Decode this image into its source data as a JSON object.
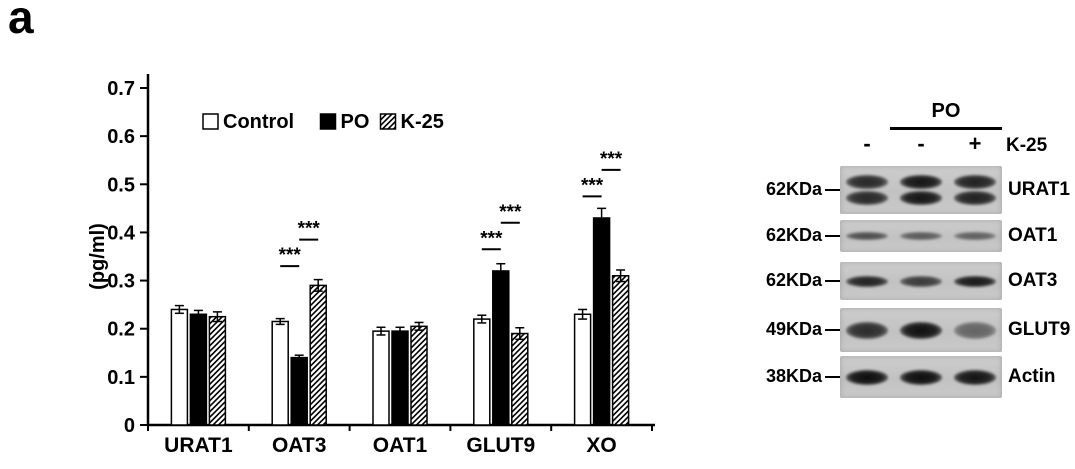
{
  "panel_label": "a",
  "chart_data": {
    "type": "bar",
    "title": "",
    "xlabel": "",
    "ylabel": "(pg/ml)",
    "ylim": [
      0,
      0.7
    ],
    "yticks": [
      0,
      0.1,
      0.2,
      0.3,
      0.4,
      0.5,
      0.6,
      0.7
    ],
    "grid": false,
    "legend_position": "top-left-inside",
    "categories": [
      "URAT1",
      "OAT3",
      "OAT1",
      "GLUT9",
      "XO"
    ],
    "series": [
      {
        "name": "Control",
        "style": "white",
        "values": [
          0.24,
          0.215,
          0.195,
          0.22,
          0.23
        ],
        "errors": [
          0.008,
          0.006,
          0.008,
          0.008,
          0.01
        ]
      },
      {
        "name": "PO",
        "style": "black",
        "values": [
          0.23,
          0.14,
          0.195,
          0.32,
          0.43
        ],
        "errors": [
          0.008,
          0.005,
          0.008,
          0.015,
          0.02
        ]
      },
      {
        "name": "K-25",
        "style": "hatch",
        "values": [
          0.225,
          0.29,
          0.205,
          0.19,
          0.31
        ],
        "errors": [
          0.01,
          0.012,
          0.008,
          0.012,
          0.012
        ]
      }
    ],
    "significance": [
      {
        "category": "OAT3",
        "pair": [
          0,
          1
        ],
        "label": "***",
        "y": 0.33
      },
      {
        "category": "OAT3",
        "pair": [
          1,
          2
        ],
        "label": "***",
        "y": 0.385
      },
      {
        "category": "GLUT9",
        "pair": [
          0,
          1
        ],
        "label": "***",
        "y": 0.365
      },
      {
        "category": "GLUT9",
        "pair": [
          1,
          2
        ],
        "label": "***",
        "y": 0.42
      },
      {
        "category": "XO",
        "pair": [
          0,
          1
        ],
        "label": "***",
        "y": 0.475
      },
      {
        "category": "XO",
        "pair": [
          1,
          2
        ],
        "label": "***",
        "y": 0.53
      }
    ],
    "colors": {
      "bar_fill_control": "#ffffff",
      "bar_fill_po": "#000000",
      "bar_stroke": "#000000"
    }
  },
  "blot": {
    "treatment_label": "PO",
    "condition_label": "K-25",
    "lane_signs": [
      "-",
      "-",
      "+"
    ],
    "rows": [
      {
        "kda": "62KDa",
        "protein": "URAT1",
        "double_band": true,
        "band_height": 16,
        "band_intensities": [
          0.82,
          0.92,
          0.86
        ]
      },
      {
        "kda": "62KDa",
        "protein": "OAT1",
        "double_band": false,
        "band_height": 8,
        "band_intensities": [
          0.62,
          0.55,
          0.52
        ]
      },
      {
        "kda": "62KDa",
        "protein": "OAT3",
        "double_band": false,
        "band_height": 11,
        "band_intensities": [
          0.85,
          0.72,
          0.9
        ]
      },
      {
        "kda": "49KDa",
        "protein": "GLUT9",
        "double_band": false,
        "band_height": 17,
        "band_intensities": [
          0.8,
          0.95,
          0.5
        ]
      },
      {
        "kda": "38KDa",
        "protein": "Actin",
        "double_band": false,
        "band_height": 15,
        "band_intensities": [
          0.96,
          0.96,
          0.93
        ]
      }
    ]
  }
}
